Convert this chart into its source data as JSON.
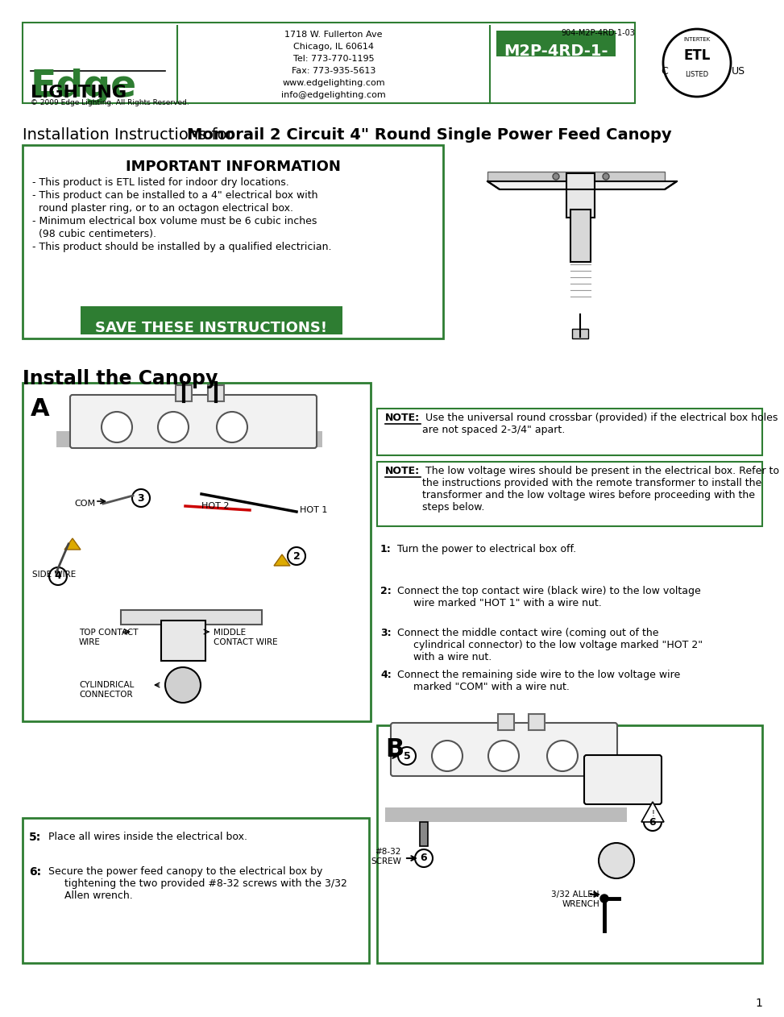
{
  "page_bg": "#ffffff",
  "green_color": "#2e7d32",
  "text_dark": "#000000",
  "header": {
    "logo_text_edge": "Edge",
    "logo_text_lighting": "LIGHTING",
    "logo_copyright": "© 2009 Edge Lighting. All Rights Reserved.",
    "address_lines": [
      "1718 W. Fullerton Ave",
      "Chicago, IL 60614",
      "Tel: 773-770-1195",
      "Fax: 773-935-5613",
      "www.edgelighting.com",
      "info@edgelighting.com"
    ],
    "model_code": "M2P-4RD-1-",
    "part_number": "904-M2P-4RD-1-03"
  },
  "title_normal": "Installation Instructions for ",
  "title_bold": "Monorail 2 Circuit 4\" Round Single Power Feed Canopy",
  "important_title": "IMPORTANT INFORMATION",
  "important_bullets": [
    "- This product is ETL listed for indoor dry locations.",
    "- This product can be installed to a 4\" electrical box with",
    "  round plaster ring, or to an octagon electrical box.",
    "- Minimum electrical box volume must be 6 cubic inches",
    "  (98 cubic centimeters).",
    "- This product should be installed by a qualified electrician."
  ],
  "save_text": "SAVE THESE INSTRUCTIONS!",
  "install_title": "Install the Canopy",
  "note1_label": "NOTE:",
  "note1_text": " Use the universal round crossbar (provided) if the electrical box holes are not spaced 2-3/4\" apart.",
  "note2_label": "NOTE:",
  "note2_text": " The low voltage wires should be present in the electrical box. Refer to the instructions provided with the remote transformer to install the transformer and the low voltage wires before proceeding with the steps below.",
  "steps_right": [
    {
      "num": "1:",
      "text": "Turn the power to electrical box off."
    },
    {
      "num": "2:",
      "text": "Connect the top contact wire (black wire) to the low voltage\n     wire marked \"HOT 1\" with a wire nut."
    },
    {
      "num": "3:",
      "text": "Connect the middle contact wire (coming out of the\n     cylindrical connector) to the low voltage marked \"HOT 2\"\n     with a wire nut."
    },
    {
      "num": "4:",
      "text": "Connect the remaining side wire to the low voltage wire\n     marked \"COM\" with a wire nut."
    }
  ],
  "steps_bottom": [
    {
      "num": "5:",
      "text": "Place all wires inside the electrical box."
    },
    {
      "num": "6:",
      "text": "Secure the power feed canopy to the electrical box by\n     tightening the two provided #8-32 screws with the 3/32\n     Allen wrench."
    }
  ],
  "page_number": "1"
}
